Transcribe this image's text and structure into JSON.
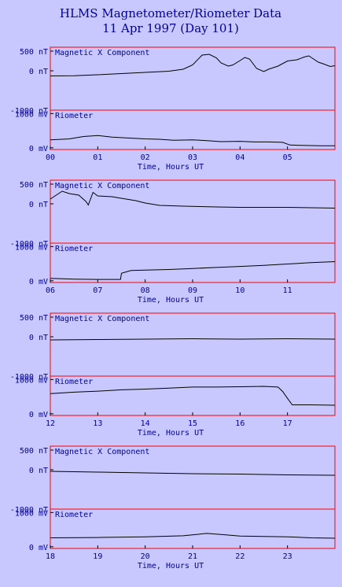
{
  "header": {
    "title": "HLMS Magnetometer/Riometer Data",
    "subtitle": "11 Apr 1997 (Day 101)"
  },
  "colors": {
    "background": "#c8c8ff",
    "text": "#000099",
    "frame": "#ff0000",
    "trace": "#000000"
  },
  "chart_data": [
    {
      "type": "line",
      "hours": [
        0,
        6
      ],
      "xlabel": "Time, Hours UT",
      "x_ticks": [
        "00",
        "01",
        "02",
        "03",
        "04",
        "05"
      ],
      "magnetic": {
        "label": "Magnetic X Component",
        "ylim": [
          -1000,
          600
        ],
        "y_ticks": [
          "500 nT",
          "0 nT",
          "-1000 nT"
        ],
        "y_tick_values": [
          500,
          0,
          -1000
        ],
        "points": [
          [
            0.0,
            -130
          ],
          [
            0.5,
            -125
          ],
          [
            1.0,
            -100
          ],
          [
            1.5,
            -70
          ],
          [
            2.0,
            -40
          ],
          [
            2.5,
            -10
          ],
          [
            2.8,
            40
          ],
          [
            3.0,
            150
          ],
          [
            3.2,
            400
          ],
          [
            3.35,
            420
          ],
          [
            3.5,
            330
          ],
          [
            3.6,
            200
          ],
          [
            3.75,
            120
          ],
          [
            3.85,
            150
          ],
          [
            4.0,
            260
          ],
          [
            4.1,
            340
          ],
          [
            4.2,
            300
          ],
          [
            4.35,
            60
          ],
          [
            4.5,
            -20
          ],
          [
            4.6,
            40
          ],
          [
            4.8,
            120
          ],
          [
            5.0,
            250
          ],
          [
            5.2,
            280
          ],
          [
            5.35,
            350
          ],
          [
            5.45,
            380
          ],
          [
            5.55,
            300
          ],
          [
            5.65,
            220
          ],
          [
            5.75,
            180
          ],
          [
            5.9,
            110
          ],
          [
            6.0,
            130
          ]
        ]
      },
      "riometer": {
        "label": "Riometer",
        "ylim": [
          -50,
          1100
        ],
        "y_ticks": [
          "1000 mV",
          "0 mV"
        ],
        "y_tick_values": [
          1000,
          0
        ],
        "points": [
          [
            0.0,
            230
          ],
          [
            0.4,
            260
          ],
          [
            0.7,
            330
          ],
          [
            1.0,
            360
          ],
          [
            1.3,
            310
          ],
          [
            1.6,
            290
          ],
          [
            2.0,
            260
          ],
          [
            2.3,
            250
          ],
          [
            2.6,
            220
          ],
          [
            3.0,
            230
          ],
          [
            3.3,
            210
          ],
          [
            3.6,
            180
          ],
          [
            4.0,
            190
          ],
          [
            4.3,
            170
          ],
          [
            4.6,
            170
          ],
          [
            4.9,
            160
          ],
          [
            5.05,
            80
          ],
          [
            5.3,
            70
          ],
          [
            5.7,
            60
          ],
          [
            6.0,
            60
          ]
        ]
      }
    },
    {
      "type": "line",
      "hours": [
        6,
        12
      ],
      "xlabel": "Time, Hours UT",
      "x_ticks": [
        "06",
        "07",
        "08",
        "09",
        "10",
        "11"
      ],
      "magnetic": {
        "label": "Magnetic X Component",
        "ylim": [
          -1000,
          600
        ],
        "y_ticks": [
          "500 nT",
          "0 nT",
          "-1000 nT"
        ],
        "y_tick_values": [
          500,
          0,
          -1000
        ],
        "points": [
          [
            6.0,
            120
          ],
          [
            6.1,
            200
          ],
          [
            6.25,
            320
          ],
          [
            6.4,
            260
          ],
          [
            6.6,
            220
          ],
          [
            6.75,
            60
          ],
          [
            6.8,
            -30
          ],
          [
            6.9,
            290
          ],
          [
            7.0,
            200
          ],
          [
            7.3,
            180
          ],
          [
            7.6,
            120
          ],
          [
            7.8,
            80
          ],
          [
            8.0,
            20
          ],
          [
            8.3,
            -40
          ],
          [
            8.8,
            -60
          ],
          [
            9.5,
            -80
          ],
          [
            10.0,
            -90
          ],
          [
            11.0,
            -90
          ],
          [
            12.0,
            -110
          ]
        ]
      },
      "riometer": {
        "label": "Riometer",
        "ylim": [
          -50,
          1100
        ],
        "y_ticks": [
          "1000 mV",
          "0 mV"
        ],
        "y_tick_values": [
          1000,
          0
        ],
        "points": [
          [
            6.0,
            70
          ],
          [
            6.5,
            50
          ],
          [
            7.0,
            40
          ],
          [
            7.48,
            40
          ],
          [
            7.5,
            220
          ],
          [
            7.7,
            300
          ],
          [
            8.0,
            310
          ],
          [
            8.5,
            330
          ],
          [
            9.0,
            360
          ],
          [
            9.5,
            390
          ],
          [
            10.0,
            420
          ],
          [
            10.5,
            450
          ],
          [
            11.0,
            490
          ],
          [
            11.5,
            530
          ],
          [
            12.0,
            560
          ]
        ]
      }
    },
    {
      "type": "line",
      "hours": [
        12,
        18
      ],
      "xlabel": "Time, Hours UT",
      "x_ticks": [
        "12",
        "13",
        "14",
        "15",
        "16",
        "17"
      ],
      "magnetic": {
        "label": "Magnetic X Component",
        "ylim": [
          -1000,
          600
        ],
        "y_ticks": [
          "500 nT",
          "0 nT",
          "-1000 nT"
        ],
        "y_tick_values": [
          500,
          0,
          -1000
        ],
        "points": [
          [
            12.0,
            -80
          ],
          [
            13.0,
            -70
          ],
          [
            14.0,
            -60
          ],
          [
            15.0,
            -50
          ],
          [
            16.0,
            -60
          ],
          [
            17.0,
            -50
          ],
          [
            18.0,
            -60
          ]
        ]
      },
      "riometer": {
        "label": "Riometer",
        "ylim": [
          -50,
          1100
        ],
        "y_ticks": [
          "1000 mV",
          "0 mV"
        ],
        "y_tick_values": [
          1000,
          0
        ],
        "points": [
          [
            12.0,
            590
          ],
          [
            12.5,
            630
          ],
          [
            13.0,
            660
          ],
          [
            13.5,
            700
          ],
          [
            14.0,
            720
          ],
          [
            14.5,
            750
          ],
          [
            15.0,
            780
          ],
          [
            15.5,
            780
          ],
          [
            16.0,
            790
          ],
          [
            16.5,
            800
          ],
          [
            16.8,
            780
          ],
          [
            16.9,
            650
          ],
          [
            17.0,
            450
          ],
          [
            17.1,
            260
          ],
          [
            17.5,
            260
          ],
          [
            18.0,
            250
          ]
        ]
      }
    },
    {
      "type": "line",
      "hours": [
        18,
        24
      ],
      "xlabel": "Time, Hours UT",
      "x_ticks": [
        "18",
        "19",
        "20",
        "21",
        "22",
        "23"
      ],
      "magnetic": {
        "label": "Magnetic X Component",
        "ylim": [
          -1000,
          600
        ],
        "y_ticks": [
          "500 nT",
          "0 nT",
          "-1000 nT"
        ],
        "y_tick_values": [
          500,
          0,
          -1000
        ],
        "points": [
          [
            18.0,
            -40
          ],
          [
            19.0,
            -60
          ],
          [
            20.0,
            -80
          ],
          [
            21.0,
            -100
          ],
          [
            22.0,
            -110
          ],
          [
            23.0,
            -130
          ],
          [
            24.0,
            -140
          ]
        ]
      },
      "riometer": {
        "label": "Riometer",
        "ylim": [
          -50,
          1100
        ],
        "y_ticks": [
          "1000 mV",
          "0 mV"
        ],
        "y_tick_values": [
          1000,
          0
        ],
        "points": [
          [
            18.0,
            260
          ],
          [
            19.0,
            270
          ],
          [
            20.0,
            290
          ],
          [
            20.8,
            320
          ],
          [
            21.3,
            390
          ],
          [
            21.6,
            360
          ],
          [
            22.0,
            310
          ],
          [
            22.5,
            300
          ],
          [
            23.0,
            290
          ],
          [
            23.5,
            260
          ],
          [
            24.0,
            250
          ]
        ]
      }
    }
  ]
}
